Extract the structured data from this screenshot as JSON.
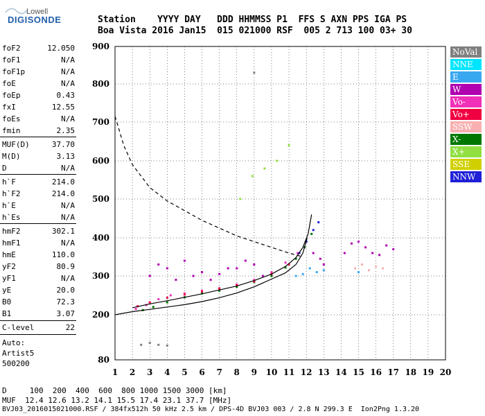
{
  "logo": {
    "top": "Lowell",
    "main": "DIGISONDE"
  },
  "header": {
    "line1": "Station    YYYY DAY   DDD HHMMSS P1  FFS S AXN PPS IGA PS",
    "line2": "Boa Vista 2016 Jan15  015 021000 RSF  005 2 713 100 03+ 30"
  },
  "params": [
    {
      "name": "foF2",
      "value": "12.050"
    },
    {
      "name": "foF1",
      "value": "N/A"
    },
    {
      "name": "foF1p",
      "value": "N/A"
    },
    {
      "name": "foE",
      "value": "N/A"
    },
    {
      "name": "foEp",
      "value": "0.43"
    },
    {
      "name": "fxI",
      "value": "12.55"
    },
    {
      "name": "foEs",
      "value": "N/A"
    },
    {
      "name": "fmin",
      "value": "2.35"
    },
    {
      "name": "MUF(D)",
      "value": "37.70"
    },
    {
      "name": "M(D)",
      "value": "3.13"
    },
    {
      "name": "D",
      "value": "N/A"
    },
    {
      "name": "h`F",
      "value": "214.0"
    },
    {
      "name": "h`F2",
      "value": "214.0"
    },
    {
      "name": "h`E",
      "value": "N/A"
    },
    {
      "name": "h`Es",
      "value": "N/A"
    },
    {
      "name": "hmF2",
      "value": "302.1"
    },
    {
      "name": "hmF1",
      "value": "N/A"
    },
    {
      "name": "hmE",
      "value": "110.0"
    },
    {
      "name": "yF2",
      "value": "80.9"
    },
    {
      "name": "yF1",
      "value": "N/A"
    },
    {
      "name": "yE",
      "value": "20.0"
    },
    {
      "name": "B0",
      "value": "72.3"
    },
    {
      "name": "B1",
      "value": "3.07"
    },
    {
      "name": "C-level",
      "value": "22"
    }
  ],
  "autoscaling": {
    "line1": "Auto:",
    "line2": "Artist5",
    "line3": "500200"
  },
  "legend": [
    {
      "label": "NoVal",
      "color": "#808080"
    },
    {
      "label": "NNE",
      "color": "#00e5ff"
    },
    {
      "label": "E",
      "color": "#3aa8f0"
    },
    {
      "label": "W",
      "color": "#b000b0"
    },
    {
      "label": "Vo-",
      "color": "#f030b8"
    },
    {
      "label": "Vo+",
      "color": "#f00040"
    },
    {
      "label": "SSW",
      "color": "#f8b0b0"
    },
    {
      "label": "X-",
      "color": "#007800"
    },
    {
      "label": "X+",
      "color": "#90e040"
    },
    {
      "label": "SSE",
      "color": "#d0d000"
    },
    {
      "label": "NNW",
      "color": "#2020d8"
    }
  ],
  "footer": {
    "line1": "D     100  200  400  600  800 1000 1500 3000 [km]",
    "line2": "MUF  12.4 12.6 13.2 14.1 15.5 17.4 23.1 37.7 [MHz]",
    "line3": "BVJ03_2016015021000.RSF / 384fx512h 50 kHz 2.5 km / DPS-4D BVJ03 003 / 2.8 N 299.3 E  Ion2Png 1.3.20"
  },
  "chart_data": {
    "type": "scatter",
    "xlim": [
      1,
      20
    ],
    "ylim": [
      80,
      900
    ],
    "xticks": [
      1,
      2,
      3,
      4,
      5,
      6,
      7,
      8,
      9,
      10,
      11,
      12,
      13,
      14,
      15,
      16,
      17,
      18,
      19,
      20
    ],
    "yticks": [
      80,
      200,
      300,
      400,
      500,
      600,
      700,
      800,
      900
    ],
    "grid": true,
    "legend_position": "right",
    "series": [
      {
        "name": "Vo-",
        "color": "#f030b8",
        "x": [
          2.2,
          2.8,
          3.5,
          4.2,
          5.0,
          6.0,
          7.0,
          8.0,
          9.0,
          10.0,
          10.8,
          11.5,
          12.0
        ],
        "y": [
          215,
          225,
          240,
          250,
          255,
          262,
          268,
          278,
          290,
          310,
          335,
          360,
          390
        ]
      },
      {
        "name": "X-",
        "color": "#007800",
        "x": [
          2.6,
          3.2,
          4.0,
          5.0,
          6.0,
          7.0,
          8.0,
          9.0,
          10.0,
          10.8,
          11.4,
          11.9,
          12.3
        ],
        "y": [
          212,
          220,
          232,
          245,
          255,
          262,
          272,
          284,
          300,
          322,
          345,
          375,
          410
        ]
      },
      {
        "name": "Vo+",
        "color": "#f00040",
        "x": [
          2.3,
          3.0,
          4.0,
          5.0,
          6.0,
          7.0,
          8.0,
          9.0,
          10.0,
          11.0
        ],
        "y": [
          222,
          232,
          244,
          252,
          260,
          268,
          276,
          286,
          305,
          330
        ]
      },
      {
        "name": "W",
        "color": "#b000b0",
        "x": [
          3.0,
          3.5,
          4.0,
          4.5,
          5.0,
          5.5,
          6.0,
          6.5,
          7.0,
          7.5,
          8.0,
          8.5,
          9.0,
          9.5,
          14.2,
          14.6,
          15.0,
          15.4,
          15.8,
          16.2,
          16.6,
          17.0,
          12.4,
          12.8,
          13.0
        ],
        "y": [
          300,
          330,
          320,
          290,
          340,
          300,
          310,
          290,
          305,
          320,
          320,
          340,
          330,
          300,
          360,
          385,
          390,
          375,
          360,
          355,
          380,
          370,
          360,
          345,
          330
        ]
      },
      {
        "name": "E",
        "color": "#3aa8f0",
        "x": [
          11.4,
          11.8,
          12.2,
          12.6,
          13.0,
          15.0
        ],
        "y": [
          300,
          305,
          320,
          310,
          315,
          310
        ]
      },
      {
        "name": "SSW",
        "color": "#f8b0b0",
        "x": [
          14.8,
          15.2,
          15.6,
          16.0,
          16.4
        ],
        "y": [
          320,
          330,
          315,
          325,
          320
        ]
      },
      {
        "name": "X+",
        "color": "#90e040",
        "x": [
          8.2,
          8.9,
          9.6,
          10.3,
          11.0
        ],
        "y": [
          500,
          560,
          580,
          600,
          640
        ]
      },
      {
        "name": "NNW",
        "color": "#2020d8",
        "x": [
          11.6,
          12.0,
          12.4,
          12.7
        ],
        "y": [
          360,
          390,
          420,
          440
        ]
      },
      {
        "name": "NoVal",
        "color": "#808080",
        "x": [
          2.5,
          3.0,
          3.5,
          4.0,
          9.0
        ],
        "y": [
          120,
          125,
          120,
          118,
          830
        ]
      }
    ],
    "lines": [
      {
        "name": "fitted profile",
        "style": "solid",
        "x": [
          1.0,
          2.0,
          3.0,
          4.0,
          5.0,
          6.0,
          7.0,
          8.0,
          9.0,
          10.0,
          10.8,
          11.4,
          11.8,
          12.05
        ],
        "y": [
          200,
          208,
          214,
          220,
          226,
          234,
          244,
          256,
          272,
          292,
          308,
          330,
          360,
          400
        ]
      },
      {
        "name": "virtual height trace",
        "style": "solid",
        "x": [
          2.0,
          3.0,
          4.0,
          5.0,
          6.0,
          7.0,
          8.0,
          9.0,
          10.0,
          10.8,
          11.4,
          11.8,
          12.1,
          12.3
        ],
        "y": [
          218,
          228,
          236,
          245,
          254,
          264,
          274,
          288,
          305,
          325,
          348,
          375,
          410,
          460
        ]
      },
      {
        "name": "MUF curve",
        "style": "dashed",
        "x": [
          1.0,
          1.5,
          2.0,
          3.0,
          4.0,
          5.0,
          6.0,
          7.0,
          8.0,
          9.0,
          10.0,
          11.0,
          11.8
        ],
        "y": [
          715,
          640,
          590,
          530,
          495,
          470,
          445,
          425,
          405,
          390,
          375,
          360,
          350
        ]
      }
    ]
  }
}
